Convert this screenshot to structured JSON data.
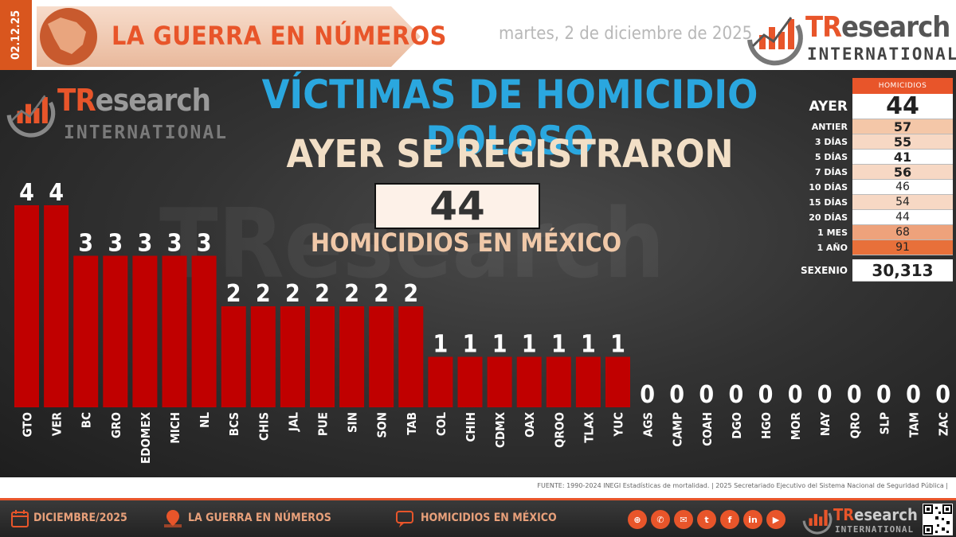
{
  "header": {
    "side_date": "02.12.25",
    "banner_title": "LA GUERRA EN NÚMEROS",
    "date": "martes, 2 de diciembre de 2025",
    "logo_tr": "TR",
    "logo_rest": "esearch",
    "logo_sub": "INTERNATIONAL"
  },
  "panel": {
    "title": "VÍCTIMAS DE HOMICIDIO DOLOSO",
    "subtitle": "AYER SE REGISTRARON",
    "big_number": "44",
    "big_caption": "HOMICIDIOS EN MÉXICO"
  },
  "stats": {
    "header": "HOMICIDIOS",
    "rows": [
      {
        "label": "AYER",
        "value": "44"
      },
      {
        "label": "ANTIER",
        "value": "57"
      },
      {
        "label": "3 DÍAS",
        "value": "55"
      },
      {
        "label": "5 DÍAS",
        "value": "41"
      },
      {
        "label": "7 DÍAS",
        "value": "56"
      },
      {
        "label": "10 DÍAS",
        "value": "46"
      },
      {
        "label": "15 DÍAS",
        "value": "54"
      },
      {
        "label": "20 DÍAS",
        "value": "44"
      },
      {
        "label": "1 MES",
        "value": "68"
      },
      {
        "label": "1 AÑO",
        "value": "91"
      },
      {
        "label": "SEXENIO",
        "value": "30,313"
      }
    ]
  },
  "chart_data": {
    "type": "bar",
    "categories": [
      "GTO",
      "VER",
      "BC",
      "GRO",
      "EDOMEX",
      "MICH",
      "NL",
      "BCS",
      "CHIS",
      "JAL",
      "PUE",
      "SIN",
      "SON",
      "TAB",
      "COL",
      "CHIH",
      "CDMX",
      "OAX",
      "QROO",
      "TLAX",
      "YUC",
      "AGS",
      "CAMP",
      "COAH",
      "DGO",
      "HGO",
      "MOR",
      "NAY",
      "QRO",
      "SLP",
      "TAM",
      "ZAC"
    ],
    "values": [
      4,
      4,
      3,
      3,
      3,
      3,
      3,
      2,
      2,
      2,
      2,
      2,
      2,
      2,
      1,
      1,
      1,
      1,
      1,
      1,
      1,
      0,
      0,
      0,
      0,
      0,
      0,
      0,
      0,
      0,
      0,
      0
    ],
    "ylim": [
      0,
      4
    ],
    "bar_color": "#c00000",
    "label_color": "#ffffff"
  },
  "source": "FUENTE: 1990-2024 INEGI Estadísticas de mortalidad. | 2025 Secretariado Ejecutivo del Sistema Nacional de Seguridad Pública |",
  "footer": {
    "item1": "DICIEMBRE/2025",
    "item2": "LA GUERRA EN NÚMEROS",
    "item3": "HOMICIDIOS EN MÉXICO",
    "social": [
      "www",
      "tel",
      "mail",
      "tw",
      "f",
      "in",
      "yt"
    ]
  },
  "colors": {
    "accent": "#e8552a",
    "title_blue": "#2aa7df",
    "bar_red": "#c00000"
  }
}
